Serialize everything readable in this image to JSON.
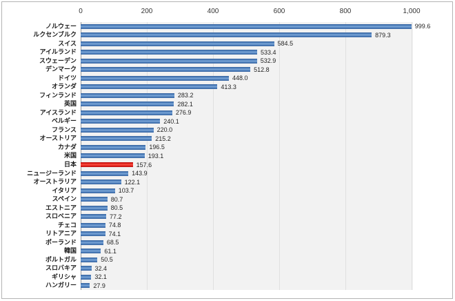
{
  "chart_data": {
    "type": "bar",
    "orientation": "horizontal",
    "title": "",
    "xlabel": "",
    "ylabel": "",
    "categories": [
      "ノルウェー",
      "ルクセンブルク",
      "スイス",
      "アイルランド",
      "スウェーデン",
      "デンマーク",
      "ドイツ",
      "オランダ",
      "フィンランド",
      "英国",
      "アイスランド",
      "ベルギー",
      "フランス",
      "オーストリア",
      "カナダ",
      "米国",
      "日本",
      "ニュージーランド",
      "オーストラリア",
      "イタリア",
      "スペイン",
      "エストニア",
      "スロベニア",
      "チェコ",
      "リトアニア",
      "ポーランド",
      "韓国",
      "ポルトガル",
      "スロバキア",
      "ギリシャ",
      "ハンガリー"
    ],
    "values": [
      999.6,
      879.3,
      584.5,
      533.4,
      532.9,
      512.8,
      448.0,
      413.3,
      283.2,
      282.1,
      276.9,
      240.1,
      220.0,
      215.2,
      196.5,
      193.1,
      157.6,
      143.9,
      122.1,
      103.7,
      80.7,
      80.5,
      77.2,
      74.8,
      74.1,
      68.5,
      61.1,
      50.5,
      32.4,
      32.1,
      27.9
    ],
    "highlight_category": "日本",
    "xlim": [
      0,
      1000
    ],
    "x_ticks": [
      0,
      200,
      400,
      600,
      800,
      1000
    ],
    "x_tick_labels": [
      "0",
      "200",
      "400",
      "600",
      "800",
      "1,000"
    ],
    "grid": true,
    "legend": "none",
    "colors": {
      "bar": "#4f81bd",
      "highlight_bar": "#e2231a",
      "plot_background": "#f2f2f2",
      "gridline": "#e0e0e0",
      "axis_line": "#9b9b9b",
      "text": "#1a1a1a",
      "frame_border": "#b3b3b3"
    }
  }
}
